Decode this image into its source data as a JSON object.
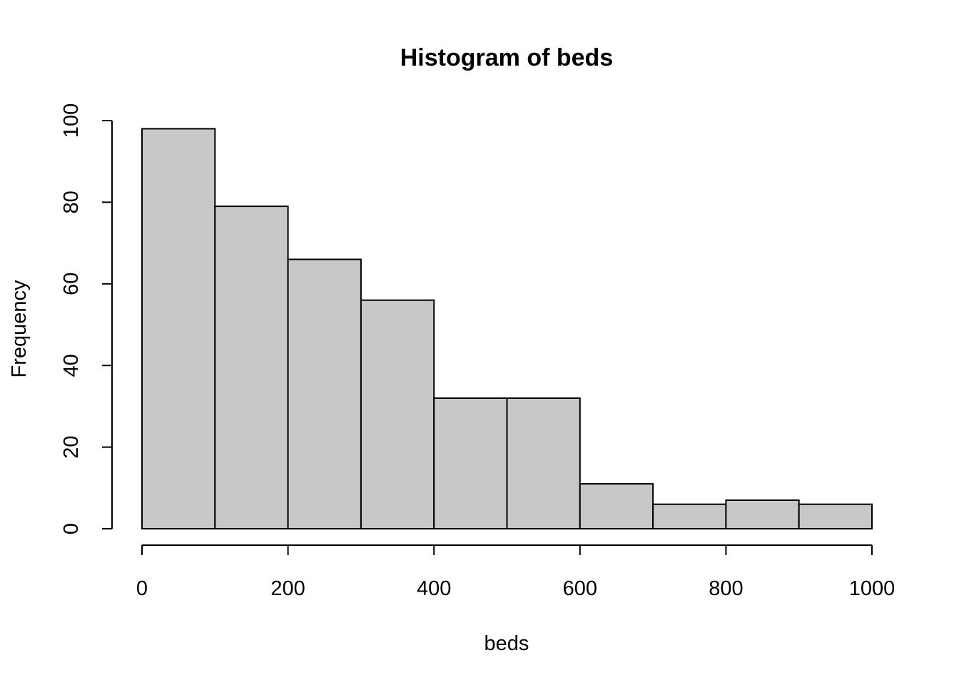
{
  "chart_data": {
    "type": "bar",
    "title": "Histogram of beds",
    "xlabel": "beds",
    "ylabel": "Frequency",
    "bin_edges": [
      0,
      100,
      200,
      300,
      400,
      500,
      600,
      700,
      800,
      900,
      1000
    ],
    "values": [
      98,
      79,
      66,
      56,
      32,
      32,
      11,
      6,
      7,
      6
    ],
    "xlim": [
      0,
      1000
    ],
    "ylim": [
      0,
      100
    ],
    "x_ticks": [
      0,
      200,
      400,
      600,
      800,
      1000
    ],
    "x_tick_labels": [
      "0",
      "200",
      "400",
      "600",
      "800",
      "1000"
    ],
    "y_ticks": [
      0,
      20,
      40,
      60,
      80,
      100
    ],
    "y_tick_labels": [
      "0",
      "20",
      "40",
      "60",
      "80",
      "100"
    ],
    "bar_color": "#c8c8c8",
    "edge_color": "#000000",
    "grid": false,
    "legend": "none"
  }
}
